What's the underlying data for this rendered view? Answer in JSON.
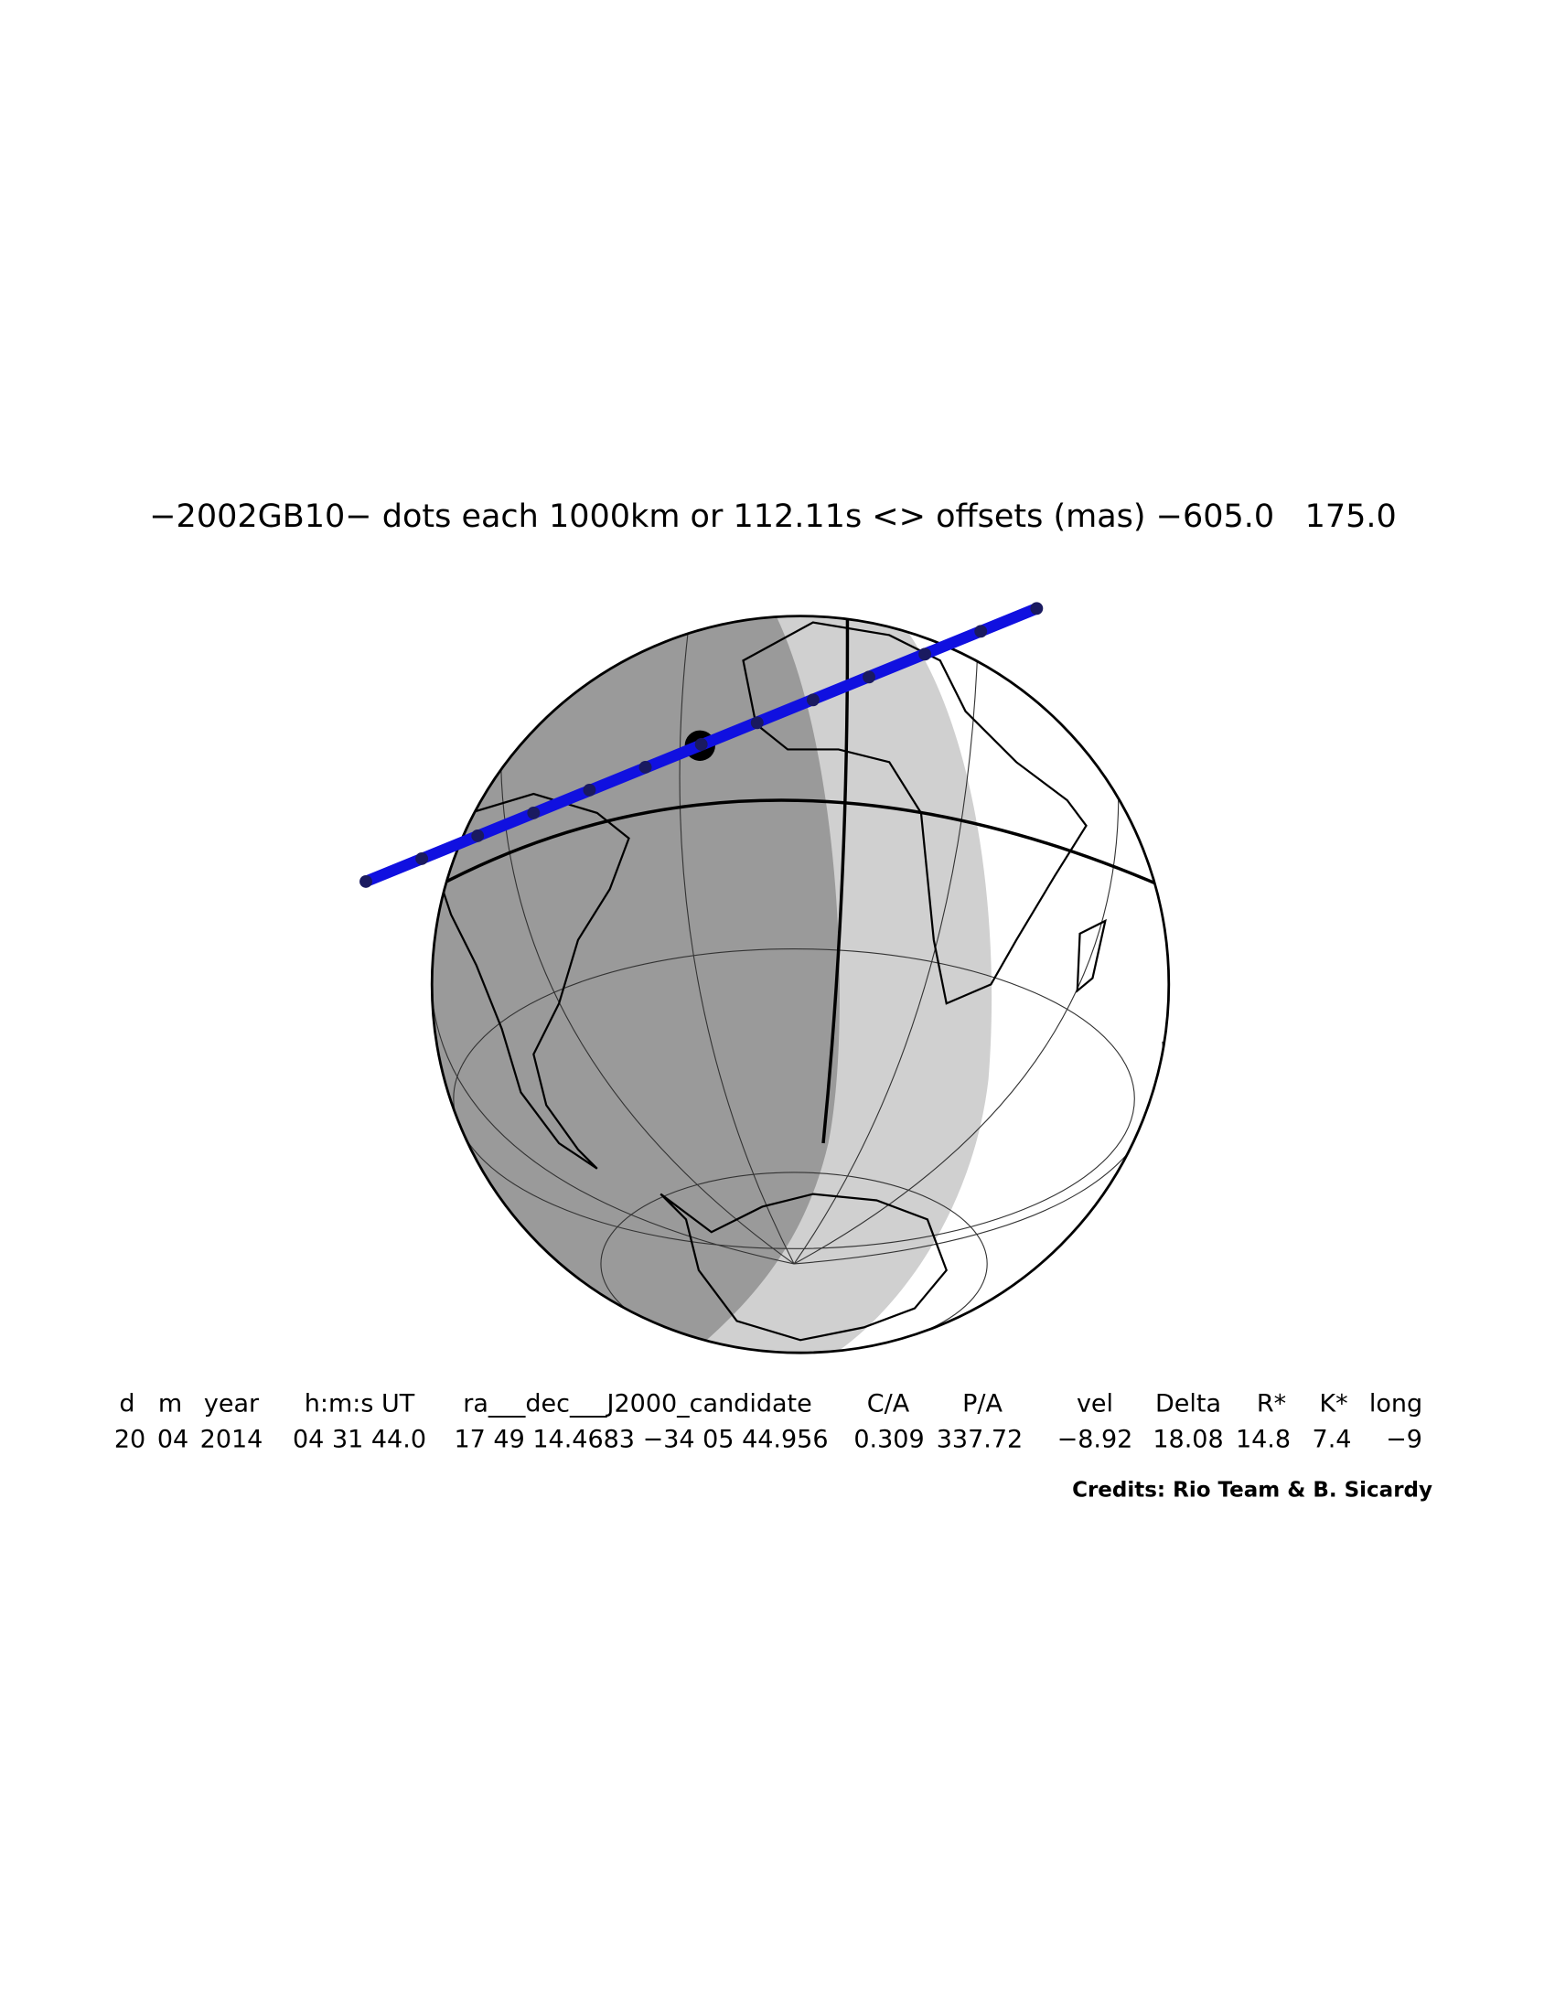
{
  "title": "−2002GB10− dots each 1000km or 112.11s <> offsets (mas) −605.0   175.0",
  "table": {
    "header": [
      "d",
      "m",
      "year",
      "h:m:s UT",
      "ra___dec___J2000_candidate",
      "C/A",
      "P/A",
      "vel",
      "Delta",
      "R*",
      "K*",
      "long"
    ],
    "rows": [
      [
        "20",
        "04",
        "2014",
        "04 31 44.0",
        "17 49 14.4683 −34 05 44.956",
        "0.309",
        "337.72",
        "−8.92",
        "18.08",
        "14.8",
        "7.4",
        "−9"
      ]
    ]
  },
  "credits": "Credits: Rio Team & B. Sicardy"
}
